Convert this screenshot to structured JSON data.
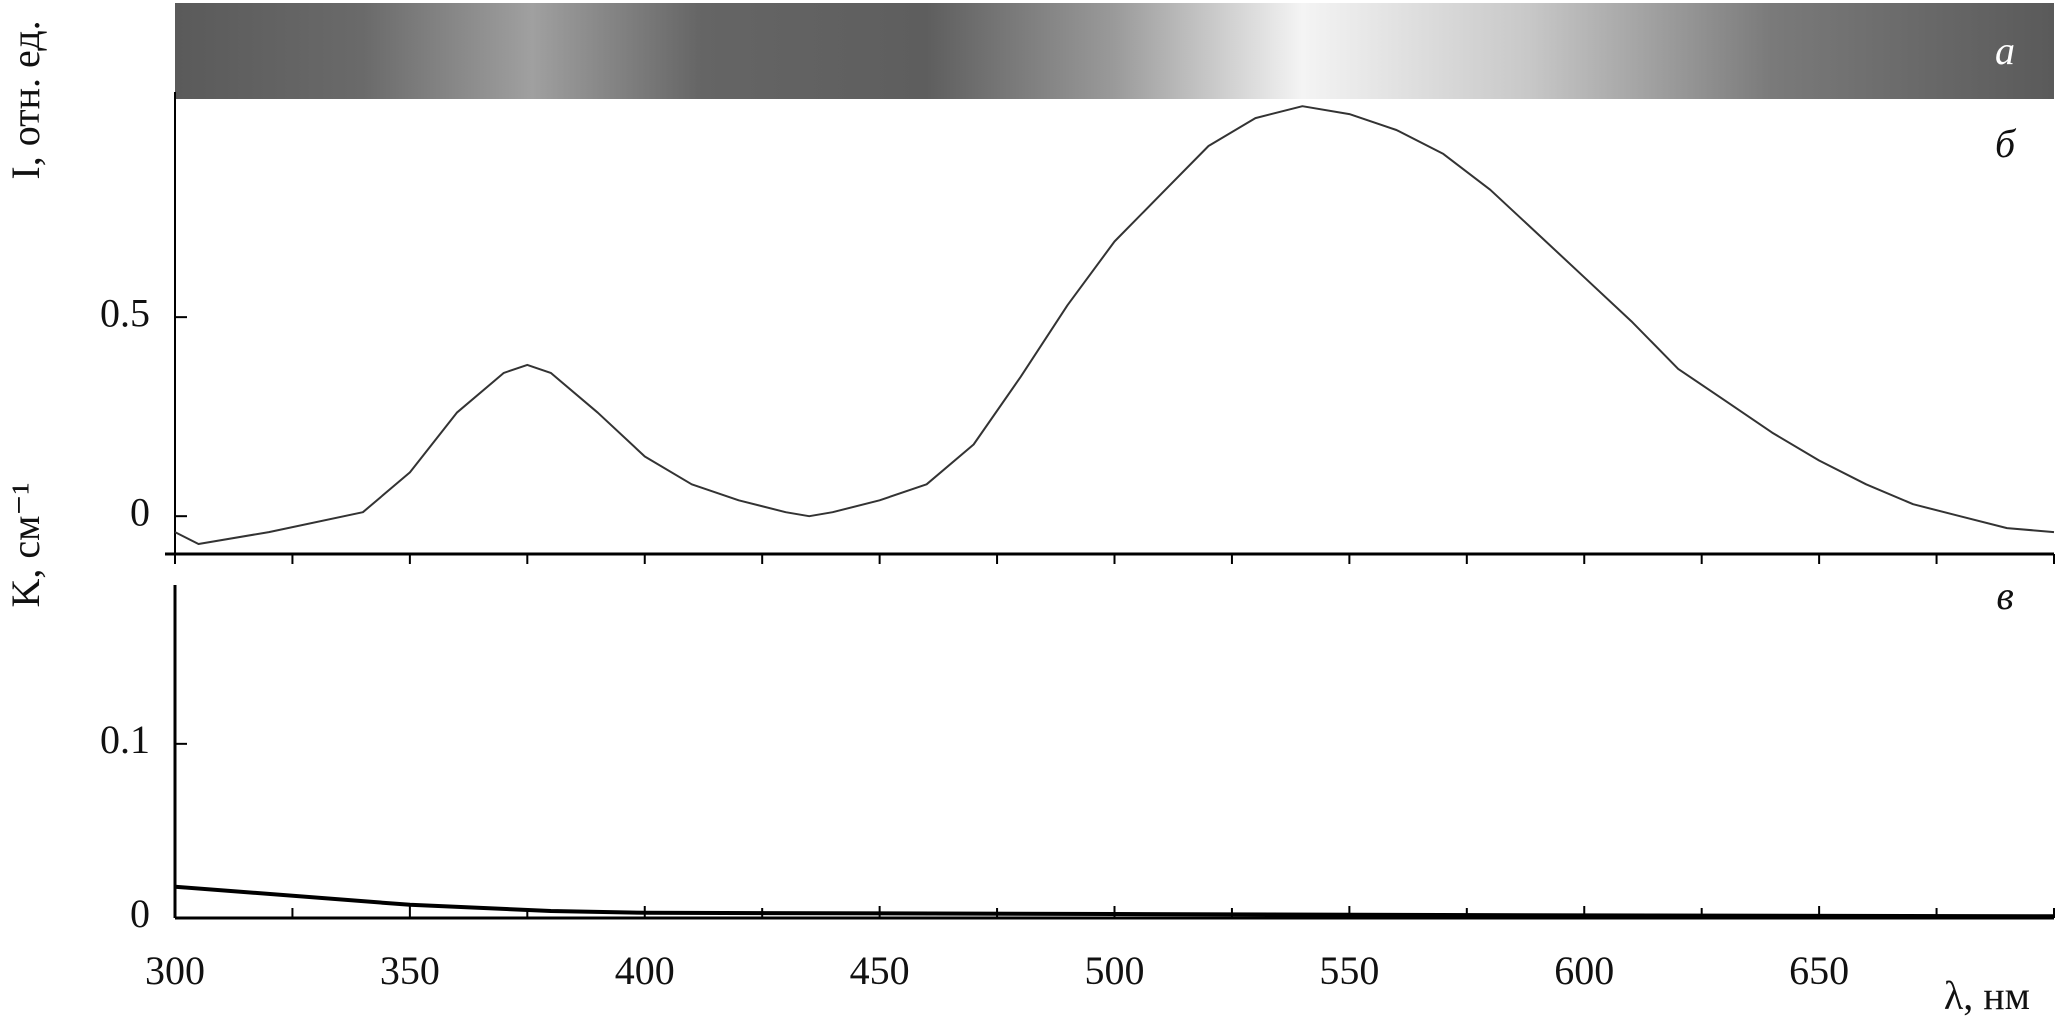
{
  "chart_data": [
    {
      "type": "strip",
      "label": "а"
    },
    {
      "type": "line",
      "label": "б",
      "ylabel": "I, отн. ед.",
      "x": [
        300,
        305,
        320,
        340,
        350,
        360,
        370,
        375,
        380,
        390,
        400,
        410,
        420,
        430,
        435,
        440,
        450,
        460,
        470,
        480,
        490,
        500,
        510,
        520,
        530,
        540,
        550,
        560,
        570,
        580,
        590,
        600,
        610,
        620,
        630,
        640,
        650,
        660,
        670,
        680,
        690,
        700
      ],
      "series": [
        {
          "color": "#333333",
          "values": [
            -0.04,
            -0.07,
            -0.04,
            0.01,
            0.11,
            0.26,
            0.36,
            0.38,
            0.36,
            0.26,
            0.15,
            0.08,
            0.04,
            0.01,
            0.0,
            0.01,
            0.04,
            0.08,
            0.18,
            0.35,
            0.53,
            0.69,
            0.81,
            0.93,
            1.0,
            1.03,
            1.01,
            0.97,
            0.91,
            0.82,
            0.71,
            0.6,
            0.49,
            0.37,
            0.29,
            0.21,
            0.14,
            0.08,
            0.03,
            0.0,
            -0.03,
            -0.04
          ]
        }
      ],
      "xlim": [
        300,
        700
      ],
      "ylim": [
        -0.095,
        1.048
      ],
      "yticks": [
        0,
        0.5
      ]
    },
    {
      "type": "line",
      "label": "в",
      "ylabel": "K, см⁻¹",
      "xlabel": "λ, нм",
      "x": [
        300,
        350,
        380,
        400,
        500,
        600,
        700
      ],
      "series": [
        {
          "color": "#000000",
          "values": [
            0.018,
            0.0076,
            0.004,
            0.003,
            0.0023,
            0.0015,
            0.001
          ]
        }
      ],
      "xlim": [
        300,
        700
      ],
      "ylim": [
        0,
        0.209
      ],
      "yticks": [
        0,
        0.1
      ],
      "xticks": [
        300,
        350,
        400,
        450,
        500,
        550,
        600,
        650
      ],
      "xminorticks": [
        325,
        375,
        425,
        475,
        525,
        575,
        625,
        675,
        700
      ]
    }
  ]
}
